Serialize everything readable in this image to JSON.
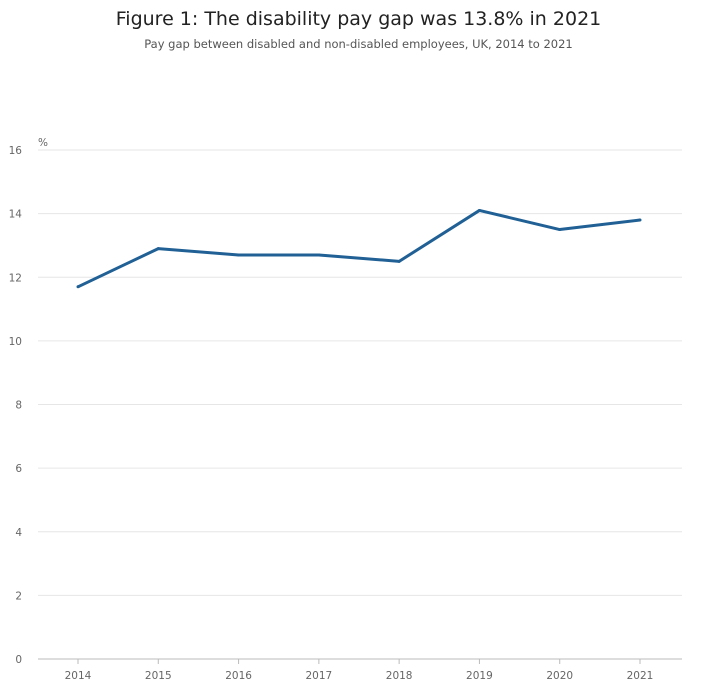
{
  "chart_data": {
    "type": "line",
    "title": "Figure 1: The disability pay gap was 13.8% in 2021",
    "subtitle": "Pay gap between disabled and non-disabled employees, UK, 2014 to 2021",
    "ylabel": "%",
    "xlabel": "",
    "categories": [
      "2014",
      "2015",
      "2016",
      "2017",
      "2018",
      "2019",
      "2020",
      "2021"
    ],
    "series": [
      {
        "values": [
          11.7,
          12.9,
          12.7,
          12.7,
          12.5,
          14.1,
          13.5,
          13.8
        ]
      }
    ],
    "ylim": [
      0,
      16
    ],
    "yticks": [
      0,
      2,
      4,
      6,
      8,
      10,
      12,
      14,
      16
    ],
    "grid": true,
    "legend": "none",
    "colors": {
      "line": "#206095",
      "grid": "#e6e6e6",
      "axis": "#bbbbbb"
    }
  }
}
